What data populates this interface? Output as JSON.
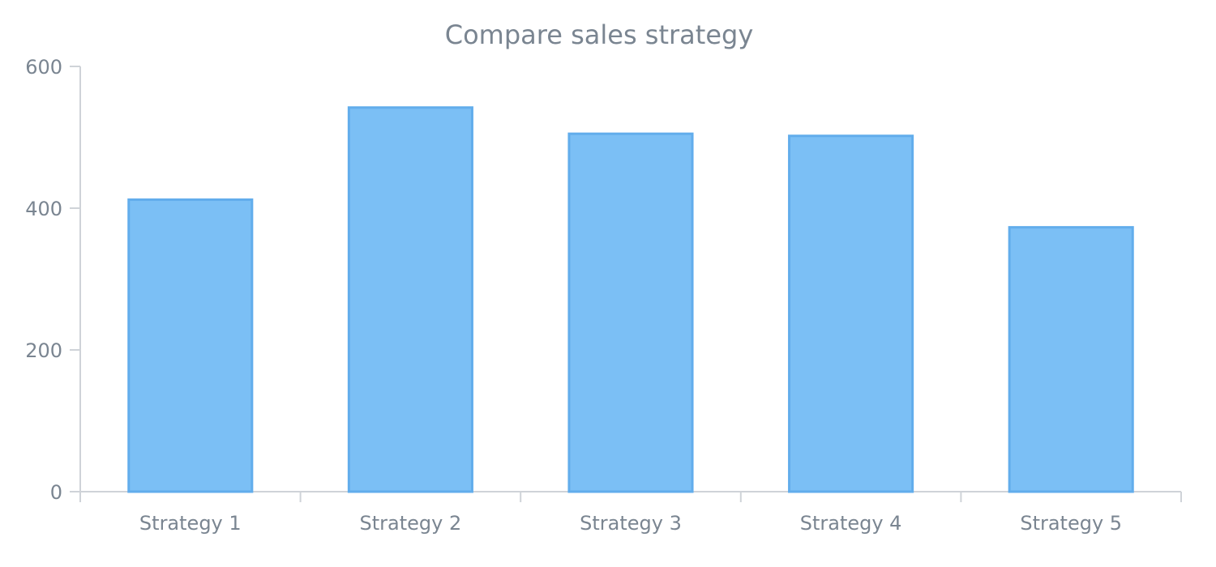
{
  "chart_data": {
    "type": "bar",
    "title": "Compare sales strategy",
    "xlabel": "",
    "ylabel": "",
    "categories": [
      "Strategy 1",
      "Strategy 2",
      "Strategy 3",
      "Strategy 4",
      "Strategy 5"
    ],
    "values": [
      412,
      542,
      505,
      502,
      373
    ],
    "ylim": [
      0,
      600
    ],
    "yticks": [
      "0",
      "200",
      "400",
      "600"
    ],
    "grid": false,
    "legend": "none",
    "bar_color": "#7bbff5",
    "bar_border_color": "#62adec",
    "axis_color": "#cfd3d8",
    "text_color": "#7a8591"
  }
}
